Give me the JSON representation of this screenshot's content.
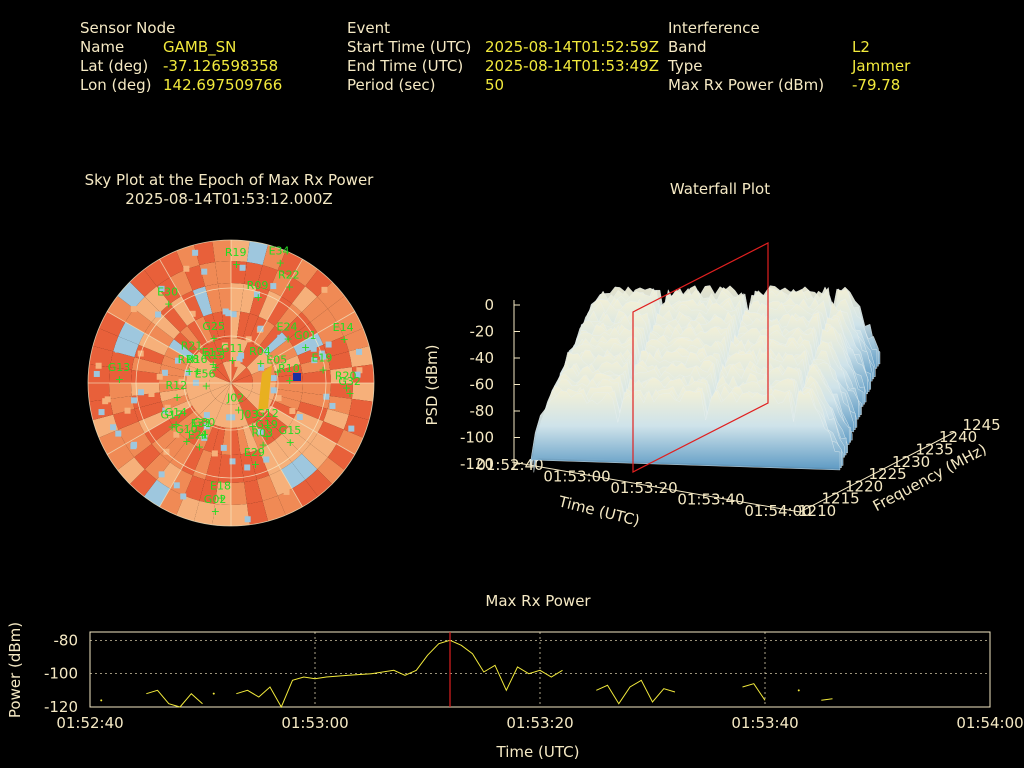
{
  "header": {
    "sensor": {
      "heading": "Sensor Node",
      "rows": [
        {
          "label": "Name",
          "value": "GAMB_SN"
        },
        {
          "label": "Lat (deg)",
          "value": "-37.126598358"
        },
        {
          "label": "Lon (deg)",
          "value": "142.697509766"
        }
      ]
    },
    "event": {
      "heading": "Event",
      "rows": [
        {
          "label": "Start Time (UTC)",
          "value": "2025-08-14T01:52:59Z"
        },
        {
          "label": "End Time (UTC)",
          "value": "2025-08-14T01:53:49Z"
        },
        {
          "label": "Period (sec)",
          "value": "50"
        }
      ]
    },
    "interference": {
      "heading": "Interference",
      "rows": [
        {
          "label": "Band",
          "value": "L2"
        },
        {
          "label": "Type",
          "value": "Jammer"
        },
        {
          "label": "Max Rx Power (dBm)",
          "value": "-79.78"
        }
      ]
    }
  },
  "sky_plot": {
    "title_line1": "Sky Plot at the Epoch of Max Rx Power",
    "title_line2": "2025-08-14T01:53:12.000Z",
    "satellites": [
      "G11",
      "J03",
      "E18",
      "J02",
      "E34",
      "E15",
      "E56",
      "G14",
      "R18",
      "R13",
      "G25",
      "G32",
      "R10",
      "R21",
      "E30",
      "E19",
      "E24",
      "R16",
      "G10",
      "R12",
      "G17",
      "G19",
      "E05",
      "E21",
      "E29",
      "G13",
      "G15",
      "R04",
      "R22",
      "E14",
      "R09",
      "R19",
      "G30",
      "R20",
      "G12",
      "G02",
      "E31",
      "R03",
      "G01"
    ],
    "palette": {
      "high": "#e8603a",
      "mid": "#f08a55",
      "low": "#f6b07a",
      "cool": "#9ec7de",
      "blue": "#1a2fa0",
      "grid": "#f5e9c4",
      "sat": "#22dd22"
    }
  },
  "waterfall": {
    "title": "Waterfall Plot",
    "zlabel": "PSD (dBm)",
    "xlabel": "Time (UTC)",
    "ylabel": "Frequency (MHz)",
    "z_ticks": [
      "0",
      "-20",
      "-40",
      "-60",
      "-80",
      "-100",
      "-120"
    ],
    "x_ticks": [
      "01:52:40",
      "01:53:00",
      "01:53:20",
      "01:53:40",
      "01:54:00"
    ],
    "y_ticks": [
      "1210",
      "1215",
      "1220",
      "1225",
      "1230",
      "1235",
      "1240",
      "1245"
    ]
  },
  "chart_data": {
    "type": "line",
    "title": "Max Rx Power",
    "xlabel": "Time (UTC)",
    "ylabel": "Power (dBm)",
    "ylim": [
      -120,
      -75
    ],
    "xlim": [
      "01:52:40",
      "01:54:00"
    ],
    "x_ticks": [
      "01:52:40",
      "01:53:00",
      "01:53:20",
      "01:53:40",
      "01:54:00"
    ],
    "y_ticks": [
      "-80",
      "-100",
      "-120"
    ],
    "grid": true,
    "marker_time": "01:53:12",
    "series_color": "#f2ea3c",
    "marker_color": "#e02020",
    "segments": [
      [
        [
          "01:52:41",
          -116
        ]
      ],
      [
        [
          "01:52:45",
          -112
        ],
        [
          "01:52:46",
          -110
        ],
        [
          "01:52:47",
          -118
        ],
        [
          "01:52:48",
          -120
        ],
        [
          "01:52:49",
          -112
        ],
        [
          "01:52:50",
          -118
        ]
      ],
      [
        [
          "01:52:51",
          -112
        ]
      ],
      [
        [
          "01:52:53",
          -112
        ],
        [
          "01:52:54",
          -110
        ],
        [
          "01:52:55",
          -114
        ],
        [
          "01:52:56",
          -108
        ],
        [
          "01:52:57",
          -120
        ],
        [
          "01:52:58",
          -104
        ],
        [
          "01:52:59",
          -102
        ],
        [
          "01:53:00",
          -103
        ],
        [
          "01:53:01",
          -102
        ],
        [
          "01:53:03",
          -101
        ],
        [
          "01:53:05",
          -100
        ],
        [
          "01:53:07",
          -98
        ],
        [
          "01:53:08",
          -101
        ],
        [
          "01:53:09",
          -98
        ],
        [
          "01:53:10",
          -89
        ],
        [
          "01:53:11",
          -82
        ],
        [
          "01:53:12",
          -80
        ],
        [
          "01:53:13",
          -83
        ],
        [
          "01:53:14",
          -88
        ],
        [
          "01:53:15",
          -99
        ],
        [
          "01:53:16",
          -95
        ],
        [
          "01:53:17",
          -110
        ],
        [
          "01:53:18",
          -96
        ],
        [
          "01:53:19",
          -100
        ],
        [
          "01:53:20",
          -98
        ],
        [
          "01:53:21",
          -102
        ],
        [
          "01:53:22",
          -98
        ]
      ],
      [
        [
          "01:53:25",
          -110
        ],
        [
          "01:53:26",
          -107
        ],
        [
          "01:53:27",
          -118
        ],
        [
          "01:53:28",
          -108
        ],
        [
          "01:53:29",
          -104
        ],
        [
          "01:53:30",
          -117
        ],
        [
          "01:53:31",
          -109
        ],
        [
          "01:53:32",
          -111
        ]
      ],
      [
        [
          "01:53:38",
          -108
        ],
        [
          "01:53:39",
          -106
        ],
        [
          "01:53:40",
          -116
        ]
      ],
      [
        [
          "01:53:43",
          -110
        ]
      ],
      [
        [
          "01:53:45",
          -116
        ],
        [
          "01:53:46",
          -115
        ]
      ]
    ]
  }
}
